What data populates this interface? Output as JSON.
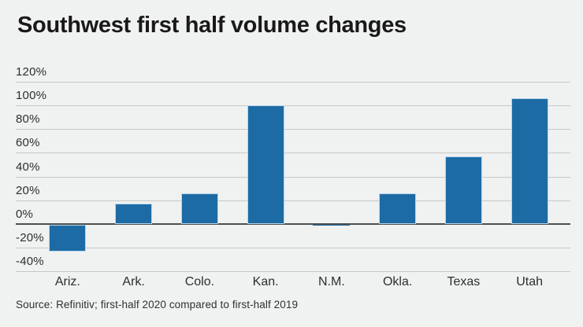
{
  "title": "Southwest first half volume changes",
  "source": "Source: Refinitiv; first-half 2020 compared to first-half 2019",
  "colors": {
    "background": "#f0f1f1",
    "bar_fill": "#1d6ba4",
    "bar_edge": "#b7d6eb",
    "gridline": "#c6c8c7",
    "zero_line": "#4d4f4e",
    "axis_text": "#2d2e2e",
    "title_text": "#19191a"
  },
  "chart_data": {
    "type": "bar",
    "title": "Southwest first half volume changes",
    "categories": [
      "Ariz.",
      "Ark.",
      "Colo.",
      "Kan.",
      "N.M.",
      "Okla.",
      "Texas",
      "Utah"
    ],
    "values": [
      -23,
      17,
      26,
      100,
      -1,
      26,
      57,
      106
    ],
    "xlabel": "",
    "ylabel": "",
    "ylim": [
      -40,
      120
    ],
    "ytick_step": 20,
    "ytick_labels": [
      "120%",
      "100%",
      "80%",
      "60%",
      "40%",
      "20%",
      "0%",
      "-20%",
      "-40%"
    ],
    "grid": true,
    "legend": false,
    "value_unit": "%"
  }
}
